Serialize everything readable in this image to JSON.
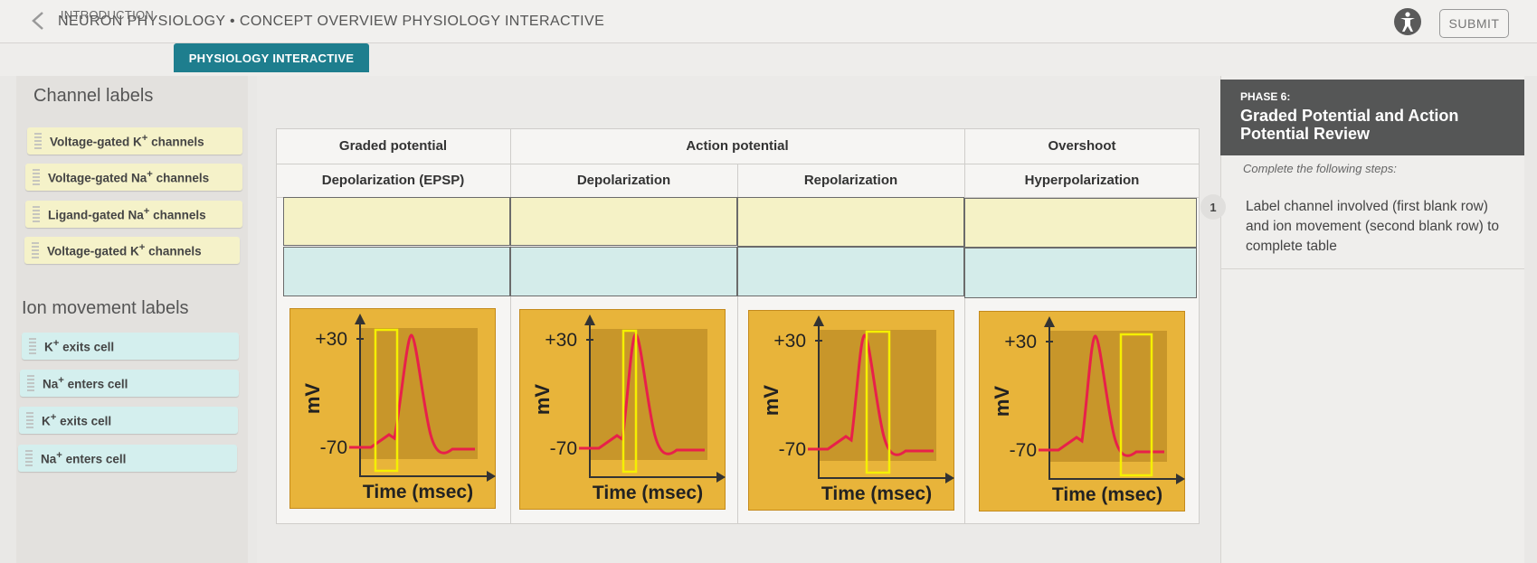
{
  "header": {
    "title": "NEURON PHYSIOLOGY • CONCEPT OVERVIEW PHYSIOLOGY INTERACTIVE",
    "submit_label": "SUBMIT"
  },
  "tabs": [
    {
      "label": "INTRODUCTION",
      "active": false
    },
    {
      "label": "PHYSIOLOGY INTERACTIVE",
      "active": true
    }
  ],
  "channel_labels": {
    "title": "Channel labels",
    "items": [
      {
        "pre": "Voltage-gated K",
        "sup": "+",
        "post": " channels"
      },
      {
        "pre": "Voltage-gated Na",
        "sup": "+",
        "post": " channels"
      },
      {
        "pre": "Ligand-gated Na",
        "sup": "+",
        "post": " channels"
      },
      {
        "pre": "Voltage-gated K",
        "sup": "+",
        "post": " channels"
      }
    ]
  },
  "ion_labels": {
    "title": "Ion movement labels",
    "items": [
      {
        "pre": "K",
        "sup": "+",
        "post": " exits cell"
      },
      {
        "pre": "Na",
        "sup": "+",
        "post": " enters cell"
      },
      {
        "pre": "K",
        "sup": "+",
        "post": " exits cell"
      },
      {
        "pre": "Na",
        "sup": "+",
        "post": " enters cell"
      }
    ]
  },
  "table": {
    "group_headers": [
      "Graded potential",
      "Action potential",
      "Overshoot"
    ],
    "sub_headers": [
      "Depolarization (EPSP)",
      "Depolarization",
      "Repolarization",
      "Hyperpolarization"
    ],
    "graph": {
      "y_top": "+30",
      "y_bottom": "-70",
      "y_label": "mV",
      "x_label": "Time (msec)"
    }
  },
  "panel": {
    "phase_label": "PHASE 6:",
    "phase_title": "Graded Potential and Action Potential Review",
    "steps_intro": "Complete the following steps:",
    "steps": [
      {
        "num": "1",
        "text": "Label channel involved (first blank row) and ion movement (second blank row) to complete table"
      }
    ]
  },
  "colors": {
    "accent": "#1e7e8e",
    "graph_bg": "#e8b43a",
    "plot_bg": "#c8962a",
    "trace": "#e8204a",
    "highlight": "#f5f000"
  }
}
